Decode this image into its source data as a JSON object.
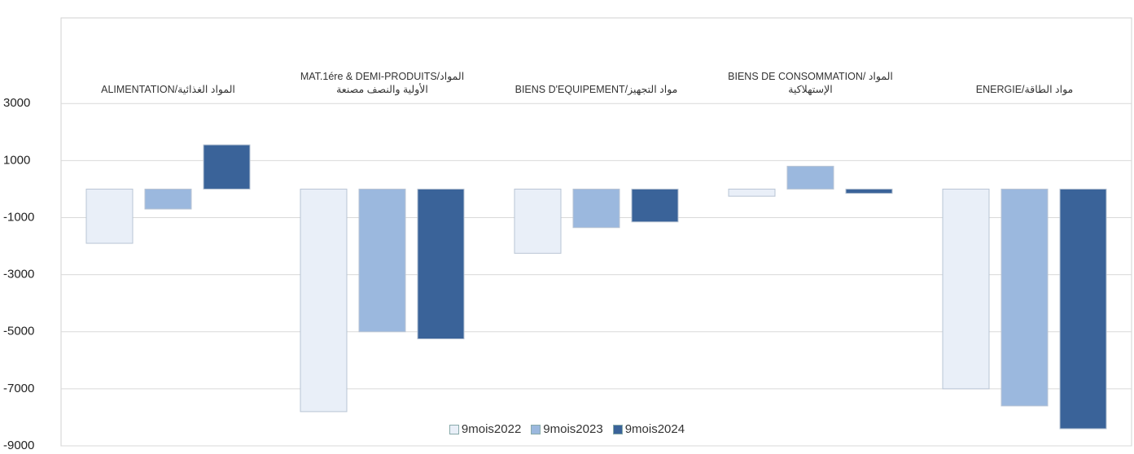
{
  "chart_data": {
    "type": "bar",
    "categories": [
      "ALIMENTATION/المواد الغذائية",
      "MAT.1ére & DEMI-PRODUITS/المواد الأولية والنصف مصنعة",
      "BIENS D'EQUIPEMENT/مواد التجهيز",
      "BIENS DE CONSOMMATION/ المواد الإستهلاكية",
      "ENERGIE/مواد الطاقة"
    ],
    "series": [
      {
        "name": "9mois2022",
        "color": "#e9eff8",
        "values": [
          -1900,
          -7800,
          -2250,
          -250,
          -7000
        ]
      },
      {
        "name": "9mois2023",
        "color": "#9bb8de",
        "values": [
          -700,
          -5000,
          -1350,
          800,
          -7600
        ]
      },
      {
        "name": "9mois2024",
        "color": "#3a6399",
        "values": [
          1550,
          -5250,
          -1150,
          -150,
          -8400
        ]
      }
    ],
    "ylim": [
      -9000,
      6000
    ],
    "yticks": [
      -9000,
      -7000,
      -5000,
      -3000,
      -1000,
      1000,
      3000
    ],
    "grid": true,
    "legend": "bottom"
  }
}
